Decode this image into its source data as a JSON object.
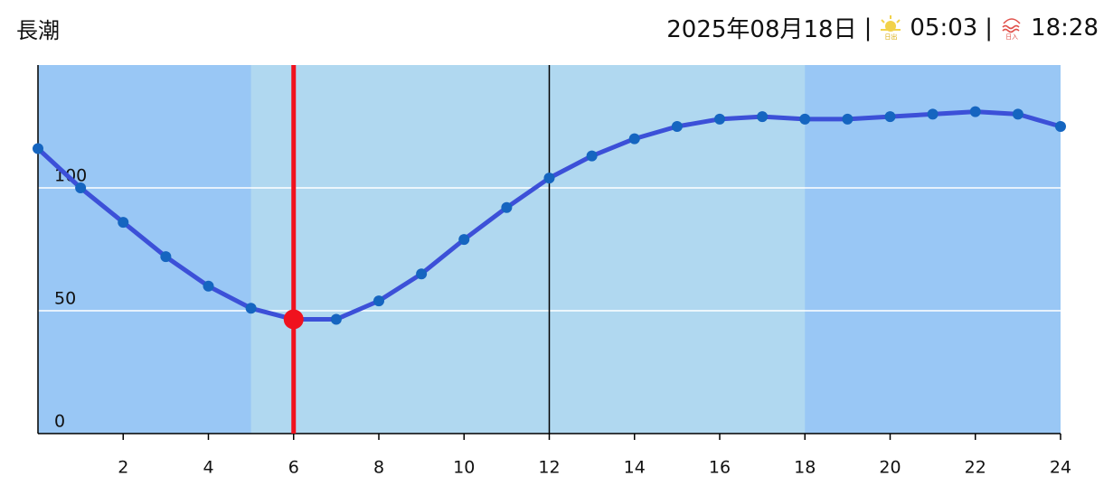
{
  "header": {
    "tide": "長潮",
    "date": "2025年08月18日",
    "separator": "|",
    "sunrise_icon": "日出",
    "sunrise": "05:03",
    "sunset_icon": "日入",
    "sunset": "18:28"
  },
  "chart_data": {
    "type": "line",
    "x": [
      0,
      1,
      2,
      3,
      4,
      5,
      6,
      7,
      8,
      9,
      10,
      11,
      12,
      13,
      14,
      15,
      16,
      17,
      18,
      19,
      20,
      21,
      22,
      23,
      24
    ],
    "values": [
      116,
      100,
      86,
      72,
      60,
      51,
      46.5,
      46.5,
      54,
      65,
      79,
      92,
      104,
      113,
      120,
      125,
      128,
      129,
      128,
      128,
      129,
      130,
      131,
      130,
      125
    ],
    "color": "#3c50d8",
    "marker_color": "#1565c0",
    "xlim": [
      0,
      24
    ],
    "xticks": [
      2,
      4,
      6,
      8,
      10,
      12,
      14,
      16,
      18,
      20,
      22,
      24
    ],
    "ylim": [
      0,
      150
    ],
    "yticks": [
      0,
      50,
      100
    ],
    "grid": true,
    "night_color": "#99c7f5",
    "day_color": "#b0d8f0",
    "day_range": [
      5,
      18
    ],
    "noon_x": 12,
    "current_x": 6,
    "current_color": "#f0121e"
  }
}
